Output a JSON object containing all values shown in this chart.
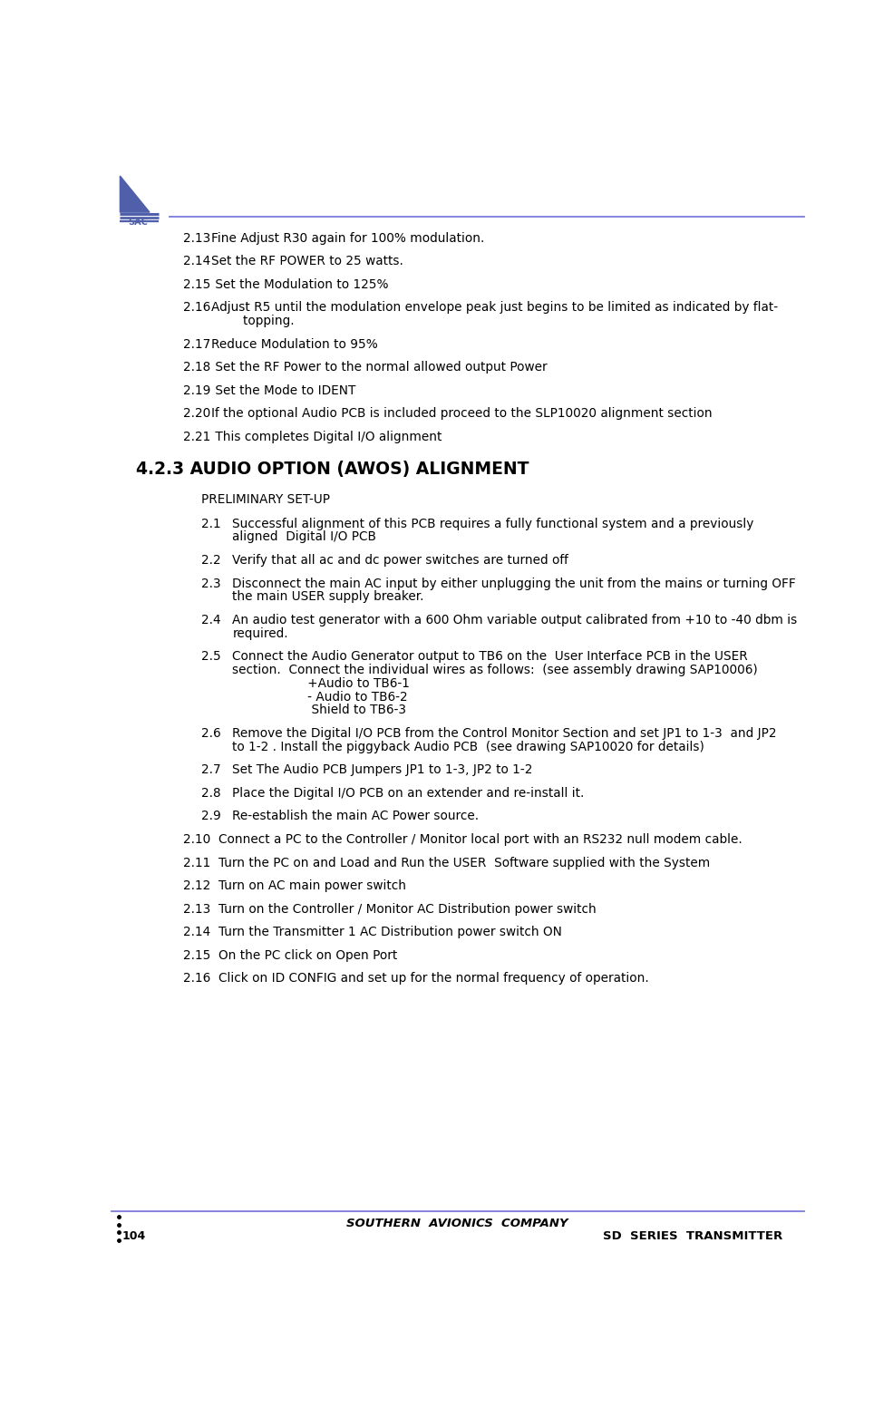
{
  "page_width": 9.85,
  "page_height": 15.53,
  "bg_color": "#ffffff",
  "header_line_color": "#7b7bdb",
  "footer_line_color": "#7b7bdb",
  "footer_company": "SOUTHERN  AVIONICS  COMPANY",
  "footer_title": "SD  SERIES  TRANSMITTER",
  "footer_page": "104",
  "section_header": "4.2.3 AUDIO OPTION (AWOS) ALIGNMENT",
  "subsection": "PRELIMINARY SET-UP",
  "top_items": [
    {
      "num": "2.13",
      "text": "Fine Adjust R30 again for 100% modulation.",
      "lines": 1
    },
    {
      "num": "2.14",
      "text": "Set the RF POWER to 25 watts.",
      "lines": 1
    },
    {
      "num": "2.15",
      "text": " Set the Modulation to 125%",
      "lines": 1
    },
    {
      "num": "2.16",
      "text": "Adjust R5 until the modulation envelope peak just begins to be limited as indicated by flat-\n        topping.",
      "lines": 2
    },
    {
      "num": "2.17",
      "text": "Reduce Modulation to 95%",
      "lines": 1
    },
    {
      "num": "2.18",
      "text": " Set the RF Power to the normal allowed output Power",
      "lines": 1
    },
    {
      "num": "2.19",
      "text": " Set the Mode to IDENT",
      "lines": 1
    },
    {
      "num": "2.20",
      "text": "If the optional Audio PCB is included proceed to the SLP10020 alignment section",
      "lines": 1
    },
    {
      "num": "2.21",
      "text": " This completes Digital I/O alignment",
      "lines": 1
    }
  ],
  "bottom_items_tabbed": [
    {
      "num": "2.1",
      "text": "Successful alignment of this PCB requires a fully functional system and a previously\naligned  Digital I/O PCB",
      "lines": 2
    },
    {
      "num": "2.2",
      "text": "Verify that all ac and dc power switches are turned off",
      "lines": 1
    },
    {
      "num": "2.3",
      "text": "Disconnect the main AC input by either unplugging the unit from the mains or turning OFF\nthe main USER supply breaker.",
      "lines": 2
    },
    {
      "num": "2.4",
      "text": "An audio test generator with a 600 Ohm variable output calibrated from +10 to -40 dbm is\nrequired.",
      "lines": 2
    },
    {
      "num": "2.5",
      "text": "Connect the Audio Generator output to TB6 on the  User Interface PCB in the USER\nsection.  Connect the individual wires as follows:  (see assembly drawing SAP10006)\n                   +Audio to TB6-1\n                   - Audio to TB6-2\n                    Shield to TB6-3",
      "lines": 5
    },
    {
      "num": "2.6",
      "text": "Remove the Digital I/O PCB from the Control Monitor Section and set JP1 to 1-3  and JP2\nto 1-2 . Install the piggyback Audio PCB  (see drawing SAP10020 for details)",
      "lines": 2
    },
    {
      "num": "2.7",
      "text": "Set The Audio PCB Jumpers JP1 to 1-3, JP2 to 1-2",
      "lines": 1
    },
    {
      "num": "2.8",
      "text": "Place the Digital I/O PCB on an extender and re-install it.",
      "lines": 1
    },
    {
      "num": "2.9",
      "text": "Re-establish the main AC Power source.",
      "lines": 1
    }
  ],
  "bottom_items_flush": [
    {
      "num": "2.10",
      "text": "Connect a PC to the Controller / Monitor local port with an RS232 null modem cable.",
      "lines": 1
    },
    {
      "num": "2.11",
      "text": "Turn the PC on and Load and Run the USER  Software supplied with the System",
      "lines": 1
    },
    {
      "num": "2.12",
      "text": "Turn on AC main power switch",
      "lines": 1
    },
    {
      "num": "2.13",
      "text": "Turn on the Controller / Monitor AC Distribution power switch",
      "lines": 1
    },
    {
      "num": "2.14",
      "text": "Turn the Transmitter 1 AC Distribution power switch ON",
      "lines": 1
    },
    {
      "num": "2.15",
      "text": "On the PC click on Open Port",
      "lines": 1
    },
    {
      "num": "2.16",
      "text": "Click on ID CONFIG and set up for the normal frequency of operation.",
      "lines": 1
    }
  ]
}
